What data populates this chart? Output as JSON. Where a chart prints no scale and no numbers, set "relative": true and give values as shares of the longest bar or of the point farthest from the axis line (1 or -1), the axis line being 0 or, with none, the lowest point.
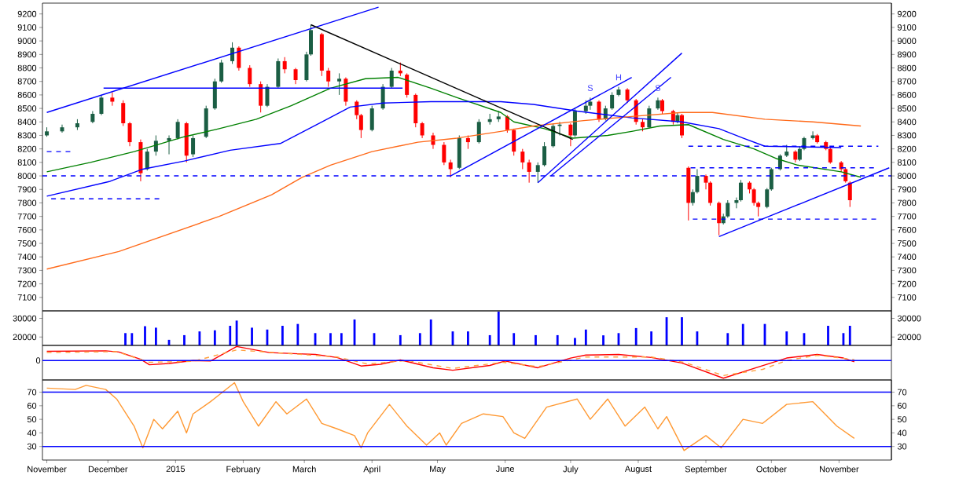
{
  "chart_data": [
    {
      "type": "candlestick",
      "tick_labels": "y",
      "xlim": [
        "2014-11-01",
        "2015-11-25"
      ],
      "ylim": [
        7000,
        9280
      ],
      "yticks": [
        7100,
        7200,
        7300,
        7400,
        7500,
        7600,
        7700,
        7800,
        7900,
        8000,
        8100,
        8200,
        8300,
        8400,
        8500,
        8600,
        8700,
        8800,
        8900,
        9000,
        9100,
        9200
      ],
      "y2lim": [
        7000,
        9280
      ],
      "y2ticks": [
        7100,
        7200,
        7300,
        7400,
        7500,
        7600,
        7700,
        7800,
        7900,
        8000,
        8100,
        8200,
        8300,
        8400,
        8500,
        8600,
        8700,
        8800,
        8900,
        9000,
        9100,
        9200
      ],
      "x": [
        "2014-11-03",
        "2014-11-10",
        "2014-11-17",
        "2014-11-24",
        "2014-11-28",
        "2014-12-03",
        "2014-12-08",
        "2014-12-11",
        "2014-12-16",
        "2014-12-19",
        "2014-12-23",
        "2014-12-29",
        "2015-01-02",
        "2015-01-06",
        "2015-01-09",
        "2015-01-15",
        "2015-01-19",
        "2015-01-22",
        "2015-01-27",
        "2015-01-30",
        "2015-02-04",
        "2015-02-09",
        "2015-02-12",
        "2015-02-17",
        "2015-02-20",
        "2015-02-25",
        "2015-03-02",
        "2015-03-04",
        "2015-03-09",
        "2015-03-12",
        "2015-03-17",
        "2015-03-20",
        "2015-03-25",
        "2015-03-27",
        "2015-04-01",
        "2015-04-06",
        "2015-04-10",
        "2015-04-14",
        "2015-04-17",
        "2015-04-21",
        "2015-04-24",
        "2015-04-29",
        "2015-05-04",
        "2015-05-07",
        "2015-05-11",
        "2015-05-15",
        "2015-05-20",
        "2015-05-25",
        "2015-05-29",
        "2015-06-02",
        "2015-06-05",
        "2015-06-09",
        "2015-06-12",
        "2015-06-16",
        "2015-06-19",
        "2015-06-23",
        "2015-06-26",
        "2015-07-01",
        "2015-07-03",
        "2015-07-08",
        "2015-07-10",
        "2015-07-14",
        "2015-07-17",
        "2015-07-20",
        "2015-07-23",
        "2015-07-27",
        "2015-07-31",
        "2015-08-03",
        "2015-08-06",
        "2015-08-10",
        "2015-08-12",
        "2015-08-17",
        "2015-08-19",
        "2015-08-21",
        "2015-08-24",
        "2015-08-26",
        "2015-08-28",
        "2015-09-01",
        "2015-09-03",
        "2015-09-07",
        "2015-09-09",
        "2015-09-11",
        "2015-09-15",
        "2015-09-17",
        "2015-09-21",
        "2015-09-23",
        "2015-09-25",
        "2015-09-29",
        "2015-10-01",
        "2015-10-05",
        "2015-10-08",
        "2015-10-12",
        "2015-10-14",
        "2015-10-16",
        "2015-10-20",
        "2015-10-22",
        "2015-10-26",
        "2015-10-28",
        "2015-11-02",
        "2015-11-04",
        "2015-11-06"
      ],
      "ohlc": [
        [
          8300,
          8360,
          8290,
          8330
        ],
        [
          8330,
          8380,
          8320,
          8360
        ],
        [
          8360,
          8420,
          8340,
          8390
        ],
        [
          8400,
          8480,
          8390,
          8460
        ],
        [
          8460,
          8600,
          8450,
          8580
        ],
        [
          8580,
          8620,
          8520,
          8550
        ],
        [
          8540,
          8560,
          8370,
          8390
        ],
        [
          8390,
          8400,
          8220,
          8250
        ],
        [
          8250,
          8270,
          7960,
          8020
        ],
        [
          8050,
          8200,
          8040,
          8180
        ],
        [
          8180,
          8300,
          8150,
          8260
        ],
        [
          8260,
          8300,
          8160,
          8280
        ],
        [
          8280,
          8420,
          8270,
          8400
        ],
        [
          8390,
          8400,
          8100,
          8150
        ],
        [
          8160,
          8300,
          8140,
          8280
        ],
        [
          8290,
          8520,
          8280,
          8500
        ],
        [
          8500,
          8720,
          8490,
          8700
        ],
        [
          8700,
          8860,
          8690,
          8840
        ],
        [
          8850,
          8990,
          8830,
          8950
        ],
        [
          8950,
          8960,
          8780,
          8800
        ],
        [
          8800,
          8820,
          8660,
          8680
        ],
        [
          8680,
          8700,
          8470,
          8520
        ],
        [
          8520,
          8680,
          8510,
          8660
        ],
        [
          8660,
          8870,
          8650,
          8850
        ],
        [
          8850,
          8880,
          8760,
          8790
        ],
        [
          8790,
          8800,
          8680,
          8710
        ],
        [
          8710,
          8920,
          8700,
          8900
        ],
        [
          8900,
          9120,
          8890,
          9080
        ],
        [
          9050,
          9060,
          8740,
          8780
        ],
        [
          8780,
          8800,
          8660,
          8700
        ],
        [
          8700,
          8760,
          8600,
          8720
        ],
        [
          8720,
          8730,
          8520,
          8550
        ],
        [
          8550,
          8560,
          8420,
          8450
        ],
        [
          8450,
          8460,
          8280,
          8340
        ],
        [
          8340,
          8520,
          8330,
          8500
        ],
        [
          8500,
          8680,
          8490,
          8660
        ],
        [
          8660,
          8800,
          8650,
          8780
        ],
        [
          8780,
          8840,
          8740,
          8760
        ],
        [
          8750,
          8760,
          8580,
          8600
        ],
        [
          8600,
          8610,
          8360,
          8390
        ],
        [
          8390,
          8400,
          8280,
          8300
        ],
        [
          8300,
          8320,
          8200,
          8230
        ],
        [
          8230,
          8250,
          8080,
          8100
        ],
        [
          8100,
          8120,
          7990,
          8050
        ],
        [
          8060,
          8300,
          8050,
          8280
        ],
        [
          8280,
          8300,
          8200,
          8250
        ],
        [
          8250,
          8420,
          8240,
          8400
        ],
        [
          8400,
          8460,
          8380,
          8420
        ],
        [
          8420,
          8480,
          8400,
          8440
        ],
        [
          8440,
          8450,
          8320,
          8340
        ],
        [
          8340,
          8350,
          8150,
          8180
        ],
        [
          8180,
          8200,
          8050,
          8100
        ],
        [
          8100,
          8120,
          7950,
          8030
        ],
        [
          8030,
          8100,
          7950,
          8080
        ],
        [
          8080,
          8250,
          8070,
          8220
        ],
        [
          8220,
          8390,
          8210,
          8370
        ],
        [
          8370,
          8400,
          8300,
          8380
        ],
        [
          8380,
          8390,
          8220,
          8300
        ],
        [
          8300,
          8500,
          8290,
          8480
        ],
        [
          8480,
          8560,
          8460,
          8520
        ],
        [
          8520,
          8580,
          8490,
          8550
        ],
        [
          8550,
          8560,
          8400,
          8420
        ],
        [
          8420,
          8520,
          8410,
          8500
        ],
        [
          8500,
          8620,
          8490,
          8600
        ],
        [
          8600,
          8660,
          8590,
          8640
        ],
        [
          8640,
          8650,
          8540,
          8560
        ],
        [
          8560,
          8570,
          8380,
          8400
        ],
        [
          8400,
          8420,
          8330,
          8360
        ],
        [
          8360,
          8520,
          8350,
          8500
        ],
        [
          8500,
          8580,
          8490,
          8560
        ],
        [
          8560,
          8570,
          8460,
          8480
        ],
        [
          8480,
          8490,
          8380,
          8400
        ],
        [
          8400,
          8470,
          8390,
          8450
        ],
        [
          8450,
          8460,
          8280,
          8300
        ],
        [
          8060,
          8070,
          7670,
          7800
        ],
        [
          7800,
          7900,
          7780,
          7880
        ],
        [
          7880,
          8050,
          7870,
          8000
        ],
        [
          8000,
          8010,
          7900,
          7950
        ],
        [
          7950,
          7960,
          7780,
          7800
        ],
        [
          7800,
          7810,
          7560,
          7650
        ],
        [
          7650,
          7720,
          7640,
          7700
        ],
        [
          7700,
          7820,
          7690,
          7800
        ],
        [
          7800,
          7840,
          7760,
          7820
        ],
        [
          7820,
          7970,
          7810,
          7950
        ],
        [
          7950,
          7960,
          7870,
          7900
        ],
        [
          7900,
          7910,
          7780,
          7800
        ],
        [
          7800,
          7810,
          7700,
          7770
        ],
        [
          7770,
          7910,
          7760,
          7900
        ],
        [
          7900,
          8060,
          7890,
          8050
        ],
        [
          8050,
          8160,
          8040,
          8150
        ],
        [
          8150,
          8230,
          8140,
          8180
        ],
        [
          8180,
          8190,
          8100,
          8120
        ],
        [
          8120,
          8220,
          8110,
          8200
        ],
        [
          8200,
          8290,
          8190,
          8280
        ],
        [
          8280,
          8330,
          8270,
          8300
        ],
        [
          8300,
          8310,
          8240,
          8250
        ],
        [
          8250,
          8260,
          8190,
          8200
        ],
        [
          8200,
          8210,
          8090,
          8100
        ],
        [
          8100,
          8110,
          8030,
          8050
        ],
        [
          8050,
          8060,
          7950,
          7960
        ],
        [
          7950,
          7960,
          7770,
          7820
        ]
      ],
      "series": [
        {
          "type": "line",
          "color": "#008000",
          "x": [
            "2014-11-03",
            "2014-11-23",
            "2014-12-13",
            "2015-01-05",
            "2015-01-21",
            "2015-02-07",
            "2015-02-23",
            "2015-03-13",
            "2015-03-29",
            "2015-04-13",
            "2015-04-28",
            "2015-05-10",
            "2015-05-30",
            "2015-06-05",
            "2015-06-19",
            "2015-07-02",
            "2015-07-18",
            "2015-07-29",
            "2015-08-11",
            "2015-08-24",
            "2015-09-09",
            "2015-09-23",
            "2015-10-03",
            "2015-10-13",
            "2015-11-02",
            "2015-11-11"
          ],
          "values": [
            8030,
            8100,
            8180,
            8290,
            8350,
            8420,
            8520,
            8650,
            8720,
            8730,
            8650,
            8580,
            8470,
            8400,
            8350,
            8280,
            8300,
            8330,
            8370,
            8380,
            8270,
            8200,
            8130,
            8080,
            8030,
            7990
          ]
        },
        {
          "type": "line",
          "color": "#0000ff",
          "x": [
            "2014-11-03",
            "2014-12-02",
            "2014-12-17",
            "2015-01-05",
            "2015-01-26",
            "2015-02-18",
            "2015-03-09",
            "2015-03-22",
            "2015-04-06",
            "2015-04-28",
            "2015-05-30",
            "2015-06-14",
            "2015-07-04",
            "2015-07-29",
            "2015-08-21",
            "2015-09-07",
            "2015-09-18",
            "2015-09-28",
            "2015-11-02"
          ],
          "values": [
            7850,
            7960,
            8050,
            8110,
            8190,
            8240,
            8400,
            8510,
            8540,
            8550,
            8550,
            8530,
            8480,
            8430,
            8400,
            8350,
            8280,
            8220,
            8210
          ]
        },
        {
          "type": "line",
          "color": "#ff6a1a",
          "x": [
            "2014-11-03",
            "2014-12-06",
            "2014-12-29",
            "2015-01-21",
            "2015-02-14",
            "2015-02-28",
            "2015-03-13",
            "2015-04-01",
            "2015-04-22",
            "2015-05-10",
            "2015-05-30",
            "2015-06-14",
            "2015-07-07",
            "2015-07-29",
            "2015-08-21",
            "2015-09-04",
            "2015-09-28",
            "2015-10-20",
            "2015-11-11"
          ],
          "values": [
            7310,
            7440,
            7570,
            7700,
            7860,
            7990,
            8080,
            8180,
            8250,
            8280,
            8330,
            8370,
            8410,
            8440,
            8470,
            8470,
            8420,
            8400,
            8370
          ]
        },
        {
          "type": "line",
          "color": "#0000ff",
          "x": [
            "2014-11-03",
            "2015-04-04"
          ],
          "values": [
            8470,
            9250
          ]
        },
        {
          "type": "line",
          "color": "#0000ff",
          "x": [
            "2014-11-29",
            "2015-04-15"
          ],
          "values": [
            8650,
            8650
          ]
        },
        {
          "type": "line",
          "color": "#000000",
          "x": [
            "2015-03-04",
            "2015-07-02"
          ],
          "values": [
            9120,
            8270
          ]
        },
        {
          "type": "line",
          "color": "#0000ff",
          "x": [
            "2015-05-07",
            "2015-07-29"
          ],
          "values": [
            8000,
            8730
          ]
        },
        {
          "type": "line",
          "color": "#0000ff",
          "x": [
            "2015-06-16",
            "2015-08-21"
          ],
          "values": [
            7950,
            8910
          ]
        },
        {
          "type": "line",
          "color": "#0000ff",
          "x": [
            "2015-06-22",
            "2015-08-16"
          ],
          "values": [
            8000,
            8730
          ]
        },
        {
          "type": "line",
          "color": "#0000ff",
          "x": [
            "2015-09-07",
            "2015-11-24"
          ],
          "values": [
            7550,
            8060
          ]
        },
        {
          "type": "line",
          "color": "#0000ff",
          "line_style": "dashed",
          "x": [
            "2014-11-03",
            "2014-11-14"
          ],
          "values": [
            8180,
            8180
          ]
        },
        {
          "type": "line",
          "color": "#0000ff",
          "line_style": "dashed",
          "x": [
            "2014-11-05",
            "2014-12-25"
          ],
          "values": [
            7830,
            7830
          ]
        },
        {
          "type": "line",
          "color": "#0000ff",
          "line_style": "dashed",
          "x": [
            "2015-08-24",
            "2015-11-19"
          ],
          "values": [
            8220,
            8220
          ]
        },
        {
          "type": "line",
          "color": "#0000ff",
          "line_style": "dashed",
          "x": [
            "2015-08-25",
            "2015-11-19"
          ],
          "values": [
            8060,
            8060
          ]
        },
        {
          "type": "line",
          "color": "#0000ff",
          "line_style": "dashed",
          "x": [
            "2015-08-26",
            "2015-11-18"
          ],
          "values": [
            7680,
            7680
          ]
        }
      ],
      "ref_lines": [
        {
          "axis": "y",
          "value": 8000,
          "color": "#0000ff",
          "line_style": "dashed"
        }
      ],
      "annotations": [
        {
          "text": "S",
          "x": "2015-07-10",
          "y": 8580
        },
        {
          "text": "H",
          "x": "2015-07-23",
          "y": 8660
        },
        {
          "text": "S",
          "x": "2015-08-10",
          "y": 8580
        }
      ]
    },
    {
      "type": "bar",
      "tick_labels": "y",
      "xlim": [
        "2014-11-01",
        "2015-11-25"
      ],
      "ylim": [
        15500,
        34000
      ],
      "yticks": [
        20000,
        30000
      ],
      "y2lim": [
        15500,
        34000
      ],
      "y2ticks": [
        20000,
        30000
      ],
      "color": "#0000ff",
      "x": [
        "2014-12-09",
        "2014-12-12",
        "2014-12-18",
        "2014-12-23",
        "2014-12-29",
        "2015-01-05",
        "2015-01-12",
        "2015-01-19",
        "2015-01-26",
        "2015-01-29",
        "2015-02-05",
        "2015-02-12",
        "2015-02-19",
        "2015-02-26",
        "2015-03-06",
        "2015-03-13",
        "2015-03-18",
        "2015-03-24",
        "2015-04-02",
        "2015-04-14",
        "2015-04-23",
        "2015-04-28",
        "2015-05-08",
        "2015-05-15",
        "2015-05-25",
        "2015-05-29",
        "2015-06-05",
        "2015-06-15",
        "2015-06-25",
        "2015-07-03",
        "2015-07-08",
        "2015-07-16",
        "2015-07-23",
        "2015-07-31",
        "2015-08-07",
        "2015-08-14",
        "2015-08-21",
        "2015-08-28",
        "2015-09-11",
        "2015-09-18",
        "2015-09-28",
        "2015-10-08",
        "2015-10-16",
        "2015-10-27",
        "2015-11-03",
        "2015-11-06"
      ],
      "values": [
        22100,
        22100,
        25800,
        25000,
        18500,
        21000,
        23000,
        23600,
        26000,
        28800,
        25000,
        24000,
        26000,
        27000,
        22100,
        22100,
        22100,
        29400,
        22100,
        21000,
        22100,
        29400,
        23000,
        23000,
        21000,
        33600,
        22100,
        21000,
        21000,
        19500,
        24000,
        20900,
        22100,
        24800,
        23000,
        30600,
        30600,
        23000,
        22100,
        27000,
        27000,
        23000,
        22100,
        26000,
        22100,
        26000
      ]
    },
    {
      "type": "line",
      "relative": true,
      "tick_labels": false,
      "xlim": [
        "2014-11-01",
        "2015-11-25"
      ],
      "series": [
        {
          "color": "#ff0000",
          "x": [
            "2014-11-03",
            "2014-11-30",
            "2014-12-06",
            "2014-12-16",
            "2014-12-20",
            "2014-12-29",
            "2015-01-09",
            "2015-01-17",
            "2015-01-29",
            "2015-02-13",
            "2015-02-26",
            "2015-03-06",
            "2015-03-16",
            "2015-03-27",
            "2015-04-05",
            "2015-04-14",
            "2015-04-29",
            "2015-05-08",
            "2015-05-25",
            "2015-06-01",
            "2015-06-16",
            "2015-07-01",
            "2015-07-08",
            "2015-07-23",
            "2015-08-07",
            "2015-08-21",
            "2015-09-09",
            "2015-09-24",
            "2015-10-08",
            "2015-10-22",
            "2015-11-03",
            "2015-11-08"
          ],
          "values": [
            0.52,
            0.55,
            0.48,
            0.07,
            -0.24,
            -0.17,
            0,
            -0.03,
            0.79,
            0.45,
            0.38,
            0.34,
            0.17,
            -0.31,
            -0.21,
            0.03,
            -0.41,
            -0.55,
            -0.28,
            -0.03,
            -0.41,
            0.14,
            0.31,
            0.34,
            0.17,
            -0.14,
            -1,
            -0.41,
            0.14,
            0.34,
            0.14,
            -0.07
          ]
        },
        {
          "color": "#ffa040",
          "line_style": "dashed",
          "x": [
            "2014-11-03",
            "2014-12-05",
            "2014-12-20",
            "2015-01-09",
            "2015-01-29",
            "2015-02-21",
            "2015-03-16",
            "2015-03-30",
            "2015-04-17",
            "2015-05-08",
            "2015-05-31",
            "2015-06-16",
            "2015-07-08",
            "2015-08-07",
            "2015-08-22",
            "2015-09-09",
            "2015-09-27",
            "2015-10-08",
            "2015-10-22",
            "2015-11-08"
          ],
          "values": [
            0.45,
            0.5,
            -0.1,
            -0.05,
            0.6,
            0.4,
            0.2,
            -0.2,
            0,
            -0.45,
            -0.1,
            -0.35,
            0.2,
            0.2,
            -0.1,
            -0.85,
            -0.5,
            0,
            0.3,
            0.05
          ]
        }
      ],
      "ref_lines": [
        {
          "axis": "y",
          "value": 0,
          "label": "0",
          "color": "#0000ff"
        }
      ]
    },
    {
      "type": "line",
      "xlim": [
        "2014-11-01",
        "2015-11-25"
      ],
      "ylim": [
        20,
        79
      ],
      "yticks": [
        30,
        40,
        50,
        60,
        70
      ],
      "y2lim": [
        20,
        79
      ],
      "y2ticks": [
        30,
        40,
        50,
        60,
        70
      ],
      "xticks": [
        {
          "value": "2014-11-03",
          "label": "November"
        },
        {
          "value": "2014-12-01",
          "label": "December"
        },
        {
          "value": "2015-01-01",
          "label": "2015"
        },
        {
          "value": "2015-02-01",
          "label": "February"
        },
        {
          "value": "2015-03-01",
          "label": "March"
        },
        {
          "value": "2015-04-01",
          "label": "April"
        },
        {
          "value": "2015-05-01",
          "label": "May"
        },
        {
          "value": "2015-06-01",
          "label": "June"
        },
        {
          "value": "2015-07-01",
          "label": "July"
        },
        {
          "value": "2015-08-01",
          "label": "August"
        },
        {
          "value": "2015-09-01",
          "label": "September"
        },
        {
          "value": "2015-10-01",
          "label": "October"
        },
        {
          "value": "2015-11-01",
          "label": "November"
        }
      ],
      "series": [
        {
          "color": "#ff9933",
          "x": [
            "2014-11-03",
            "2014-11-16",
            "2014-11-21",
            "2014-11-30",
            "2014-12-05",
            "2014-12-13",
            "2014-12-17",
            "2014-12-22",
            "2014-12-26",
            "2015-01-02",
            "2015-01-06",
            "2015-01-09",
            "2015-01-17",
            "2015-01-28",
            "2015-02-01",
            "2015-02-08",
            "2015-02-16",
            "2015-02-21",
            "2015-03-02",
            "2015-03-09",
            "2015-03-16",
            "2015-03-24",
            "2015-03-27",
            "2015-03-30",
            "2015-04-09",
            "2015-04-17",
            "2015-04-26",
            "2015-05-02",
            "2015-05-05",
            "2015-05-12",
            "2015-05-22",
            "2015-05-31",
            "2015-06-05",
            "2015-06-10",
            "2015-06-20",
            "2015-07-04",
            "2015-07-10",
            "2015-07-18",
            "2015-07-26",
            "2015-08-04",
            "2015-08-10",
            "2015-08-14",
            "2015-08-22",
            "2015-09-01",
            "2015-09-08",
            "2015-09-18",
            "2015-09-27",
            "2015-10-08",
            "2015-10-20",
            "2015-10-31",
            "2015-11-08"
          ],
          "values": [
            73,
            72,
            75,
            72,
            65,
            45,
            29,
            50,
            43,
            56,
            40,
            54,
            63,
            77,
            63,
            45,
            63,
            54,
            65,
            47,
            43,
            38,
            29,
            40,
            61,
            45,
            31,
            40,
            31,
            47,
            54,
            52,
            40,
            36,
            59,
            65,
            50,
            65,
            45,
            59,
            43,
            52,
            27,
            38,
            29,
            50,
            47,
            61,
            63,
            45,
            36
          ]
        }
      ],
      "ref_lines": [
        {
          "axis": "y",
          "value": 30,
          "color": "#0000ff"
        },
        {
          "axis": "y",
          "value": 70,
          "color": "#0000ff"
        }
      ]
    }
  ]
}
